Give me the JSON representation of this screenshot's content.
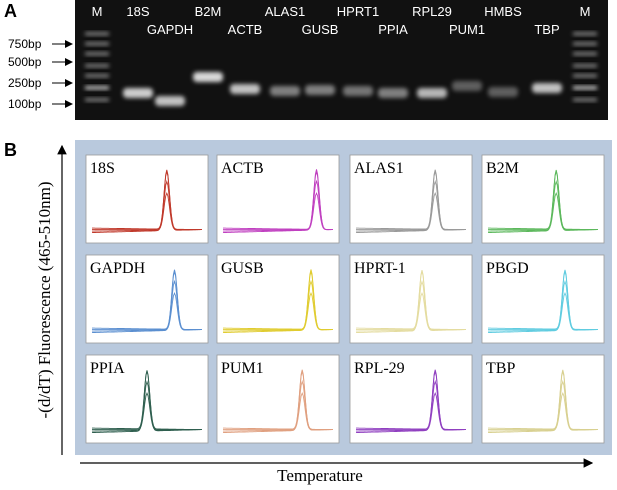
{
  "panel_a": {
    "label": "A",
    "ladder_labels": [
      "750bp",
      "500bp",
      "250bp",
      "100bp"
    ],
    "lanes": [
      "M",
      "18S",
      "GAPDH",
      "B2M",
      "ACTB",
      "ALAS1",
      "GUSB",
      "HPRT1",
      "PPIA",
      "RPL29",
      "PUM1",
      "HMBS",
      "TBP",
      "M"
    ]
  },
  "panel_b": {
    "label": "B",
    "y_axis_label": "-(d/dT) Fluorescence (465-510nm)",
    "x_axis_label": "Temperature",
    "panels": [
      {
        "name": "18S",
        "color": "#c0392b"
      },
      {
        "name": "ACTB",
        "color": "#c040c0"
      },
      {
        "name": "ALAS1",
        "color": "#9a9a9a"
      },
      {
        "name": "B2M",
        "color": "#5cb85c"
      },
      {
        "name": "GAPDH",
        "color": "#5b8fd0"
      },
      {
        "name": "GUSB",
        "color": "#e0cc30"
      },
      {
        "name": "HPRT-1",
        "color": "#e4dca0"
      },
      {
        "name": "PBGD",
        "color": "#60cce0"
      },
      {
        "name": "PPIA",
        "color": "#2f5f4f"
      },
      {
        "name": "PUM1",
        "color": "#e0a080"
      },
      {
        "name": "RPL-29",
        "color": "#9040c0"
      },
      {
        "name": "TBP",
        "color": "#d8d090"
      }
    ]
  }
}
